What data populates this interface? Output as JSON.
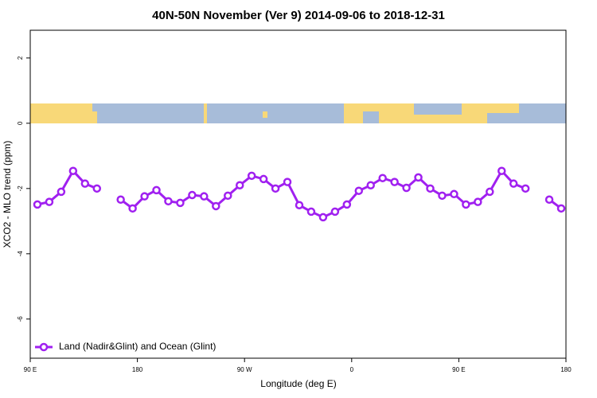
{
  "chart_data": {
    "type": "line",
    "title": "40N-50N November (Ver 9)   2014-09-06 to 2018-12-31",
    "x_label": "Longitude (deg E)",
    "y_label": "XCO2 - MLO trend (ppm)",
    "x": [
      96,
      106,
      116,
      126,
      136,
      146,
      156,
      166,
      176,
      186,
      196,
      206,
      216,
      226,
      236,
      246,
      256,
      266,
      276,
      286,
      296,
      306,
      316,
      326,
      336,
      346,
      356,
      366,
      376,
      386,
      396,
      406,
      416,
      426,
      436,
      446,
      456,
      466,
      476,
      486,
      496,
      506,
      516,
      526,
      536
    ],
    "series": [
      {
        "name": "Land (Nadir&Glint) and Ocean (Glint)",
        "color": "#a020f0",
        "values": [
          -2.49,
          -2.41,
          -2.1,
          -1.46,
          -1.85,
          -2.0,
          null,
          -2.34,
          -2.61,
          -2.24,
          -2.05,
          -2.39,
          -2.44,
          -2.2,
          -2.24,
          -2.54,
          -2.22,
          -1.9,
          -1.61,
          -1.71,
          -2.0,
          -1.8,
          -2.51,
          -2.71,
          -2.88,
          -2.71,
          -2.49,
          -2.07,
          -1.9,
          -1.68,
          -1.8,
          -1.98,
          -1.66,
          -2.0,
          -2.22,
          -2.17,
          -2.49,
          -2.41,
          -2.1,
          -1.46,
          -1.85,
          -2.0,
          null,
          -2.34,
          -2.61
        ]
      }
    ],
    "xlim": [
      90,
      540
    ],
    "xticks": [
      {
        "value": 90,
        "label": "90 E"
      },
      {
        "value": 180,
        "label": "180"
      },
      {
        "value": 270,
        "label": "90 W"
      },
      {
        "value": 360,
        "label": "0"
      },
      {
        "value": 450,
        "label": "90 E"
      },
      {
        "value": 540,
        "label": "180"
      }
    ],
    "ylim": [
      -7.2,
      2.85
    ],
    "yticks": [
      2,
      0,
      -2,
      -4,
      -6
    ],
    "legend": "bottom-left"
  }
}
